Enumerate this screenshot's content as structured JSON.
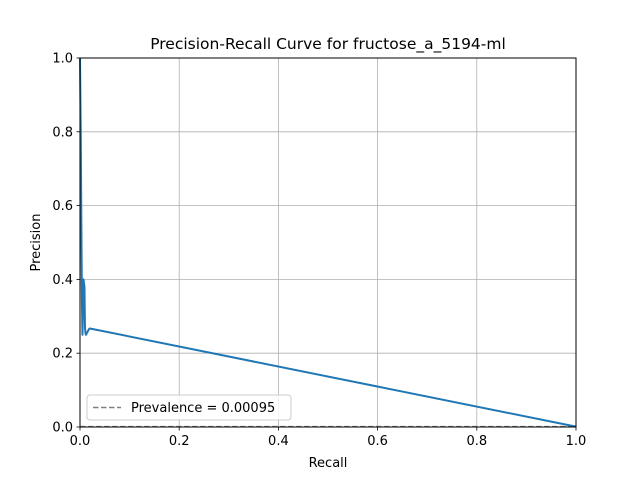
{
  "chart_data": {
    "type": "line",
    "title": "Precision-Recall Curve for fructose_a_5194-ml",
    "xlabel": "Recall",
    "ylabel": "Precision",
    "xlim": [
      0.0,
      1.0
    ],
    "ylim": [
      0.0,
      1.0
    ],
    "xticks": [
      "0.0",
      "0.2",
      "0.4",
      "0.6",
      "0.8",
      "1.0"
    ],
    "yticks": [
      "0.0",
      "0.2",
      "0.4",
      "0.6",
      "0.8",
      "1.0"
    ],
    "grid": true,
    "legend_position": "lower-left",
    "series": [
      {
        "color": "#1f77b4",
        "style": "solid",
        "x": [
          0.0,
          0.0015,
          0.003,
          0.004,
          0.005,
          0.007,
          0.009,
          0.01,
          0.011,
          0.012,
          0.014,
          0.016,
          0.018,
          0.02,
          1.0
        ],
        "y": [
          1.0,
          0.8,
          0.5,
          0.33,
          0.25,
          0.4,
          0.38,
          0.27,
          0.255,
          0.25,
          0.255,
          0.26,
          0.265,
          0.267,
          0.001
        ]
      },
      {
        "name": "Prevalence = 0.00095",
        "color": "#808080",
        "style": "dashed",
        "x": [
          0.0,
          1.0
        ],
        "y": [
          0.00095,
          0.00095
        ]
      }
    ]
  }
}
